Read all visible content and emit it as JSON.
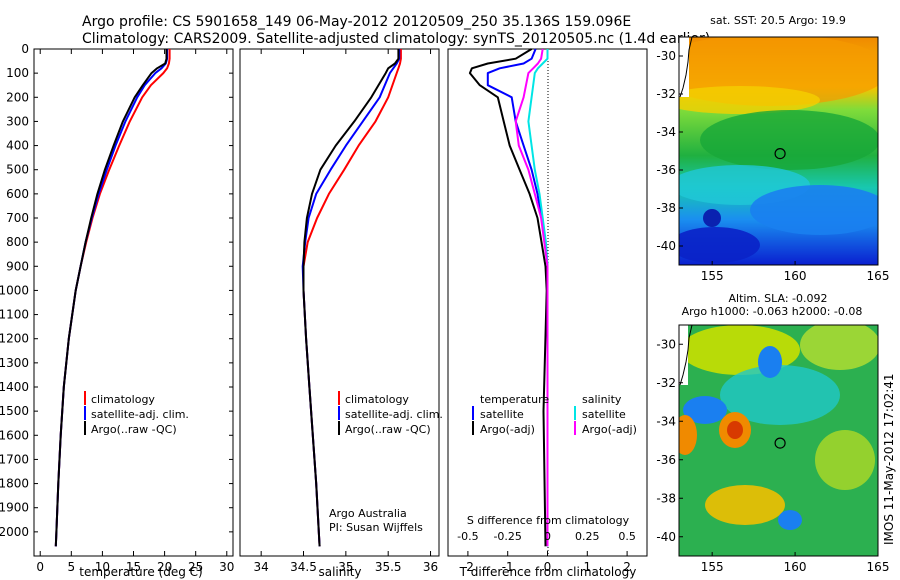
{
  "header": {
    "line1": "Argo profile: CS 5901658_149 06-May-2012 20120509_250 35.136S 159.096E",
    "line2": "Climatology: CARS2009. Satellite-adjusted climatology: synTS_20120505.nc (1.4d earlier)"
  },
  "colors": {
    "red": "#ff0000",
    "blue": "#0000ff",
    "black": "#000000",
    "cyan": "#00e5e5",
    "magenta": "#ff00ff"
  },
  "chart_data": [
    {
      "type": "line",
      "id": "temperature",
      "xlabel": "temperature (deg C)",
      "ylim": [
        2100,
        0
      ],
      "xlim": [
        -1,
        31
      ],
      "yticks": [
        0,
        100,
        200,
        300,
        400,
        500,
        600,
        700,
        800,
        900,
        1000,
        1100,
        1200,
        1300,
        1400,
        1500,
        1600,
        1700,
        1800,
        1900,
        2000
      ],
      "xticks": [
        0,
        5,
        10,
        15,
        20,
        25,
        30
      ],
      "legend": [
        "climatology",
        "satellite-adj. clim.",
        "Argo(..raw -QC)"
      ],
      "series": [
        {
          "name": "climatology",
          "color": "red",
          "depth": [
            0,
            40,
            60,
            80,
            100,
            150,
            200,
            300,
            400,
            500,
            600,
            700,
            800,
            900,
            1000,
            1200,
            1400,
            1600,
            1800,
            2000,
            2060
          ],
          "values": [
            20.8,
            20.8,
            20.7,
            20.4,
            19.8,
            17.8,
            16.4,
            14.4,
            12.7,
            11.1,
            9.6,
            8.4,
            7.4,
            6.5,
            5.7,
            4.6,
            3.8,
            3.3,
            2.9,
            2.6,
            2.5
          ]
        },
        {
          "name": "satellite-adj. clim.",
          "color": "blue",
          "depth": [
            0,
            40,
            60,
            80,
            100,
            150,
            200,
            300,
            400,
            500,
            600,
            700,
            800,
            900,
            1000,
            1200,
            1400,
            1600,
            1800,
            2000,
            2060
          ],
          "values": [
            20.4,
            20.4,
            20.2,
            19.5,
            18.5,
            16.8,
            15.6,
            13.7,
            12.1,
            10.7,
            9.4,
            8.3,
            7.3,
            6.5,
            5.7,
            4.6,
            3.8,
            3.3,
            2.9,
            2.6,
            2.5
          ]
        },
        {
          "name": "Argo(..raw -QC)",
          "color": "black",
          "depth": [
            0,
            40,
            60,
            80,
            100,
            150,
            200,
            300,
            400,
            500,
            600,
            700,
            800,
            900,
            1000,
            1200,
            1400,
            1600,
            1800,
            2000,
            2060
          ],
          "values": [
            20.3,
            20.3,
            20.1,
            18.8,
            17.9,
            16.5,
            15.2,
            13.3,
            11.8,
            10.4,
            9.2,
            8.2,
            7.3,
            6.5,
            5.7,
            4.6,
            3.8,
            3.3,
            2.9,
            2.6,
            2.5
          ]
        }
      ]
    },
    {
      "type": "line",
      "id": "salinity",
      "xlabel": "salinity",
      "ylim": [
        2100,
        0
      ],
      "xlim": [
        33.75,
        36.1
      ],
      "xticks": [
        34,
        34.5,
        35,
        35.5,
        36
      ],
      "legend": [
        "climatology",
        "satellite-adj. clim.",
        "Argo(..raw -QC)"
      ],
      "credit": [
        "Argo Australia",
        "PI: Susan Wijffels"
      ],
      "series": [
        {
          "name": "climatology",
          "color": "red",
          "depth": [
            0,
            40,
            60,
            80,
            100,
            200,
            300,
            400,
            500,
            600,
            700,
            800,
            900,
            1000,
            1200,
            1400,
            1600,
            1800,
            2000,
            2060
          ],
          "values": [
            35.65,
            35.65,
            35.64,
            35.62,
            35.6,
            35.5,
            35.35,
            35.15,
            34.98,
            34.8,
            34.66,
            34.55,
            34.5,
            34.5,
            34.53,
            34.57,
            34.61,
            34.65,
            34.68,
            34.69
          ]
        },
        {
          "name": "satellite-adj. clim.",
          "color": "blue",
          "depth": [
            0,
            40,
            60,
            80,
            100,
            200,
            300,
            400,
            500,
            600,
            700,
            800,
            900,
            1000,
            1200,
            1400,
            1600,
            1800,
            2000,
            2060
          ],
          "values": [
            35.63,
            35.63,
            35.6,
            35.56,
            35.52,
            35.4,
            35.2,
            35.0,
            34.82,
            34.65,
            34.56,
            34.52,
            34.49,
            34.5,
            34.53,
            34.57,
            34.61,
            34.65,
            34.68,
            34.69
          ]
        },
        {
          "name": "Argo(..raw -QC)",
          "color": "black",
          "depth": [
            0,
            40,
            60,
            80,
            100,
            200,
            300,
            400,
            500,
            600,
            700,
            800,
            900,
            1000,
            1200,
            1400,
            1600,
            1800,
            2000,
            2060
          ],
          "values": [
            35.62,
            35.62,
            35.58,
            35.5,
            35.47,
            35.3,
            35.1,
            34.88,
            34.7,
            34.6,
            34.54,
            34.51,
            34.5,
            34.5,
            34.53,
            34.57,
            34.61,
            34.65,
            34.68,
            34.69
          ]
        }
      ]
    },
    {
      "type": "line",
      "id": "differences",
      "xlabel": "T difference from climatology",
      "xlabel_top": "S difference from climatology",
      "xlim": [
        -2.5,
        2.5
      ],
      "xticks": [
        -2,
        -1,
        0,
        1,
        2
      ],
      "sticks_labels": [
        "-0.5",
        "-0.25",
        "0",
        "0.25",
        "0.5"
      ],
      "legend_titles": [
        "temperature",
        "salinity"
      ],
      "legend": [
        "satellite",
        "Argo(-adj)",
        "satellite",
        "Argo(-adj)"
      ],
      "series": [
        {
          "name": "T satellite",
          "color": "blue",
          "depth": [
            0,
            40,
            60,
            80,
            100,
            150,
            200,
            300,
            400,
            500,
            600,
            700,
            800,
            900,
            1000,
            1500,
            2060
          ],
          "values": [
            -0.3,
            -0.4,
            -0.6,
            -1.2,
            -1.5,
            -1.5,
            -0.9,
            -0.8,
            -0.6,
            -0.4,
            -0.25,
            -0.15,
            -0.05,
            0,
            0,
            0,
            0
          ]
        },
        {
          "name": "T Argo(-adj)",
          "color": "black",
          "depth": [
            0,
            40,
            60,
            80,
            100,
            150,
            200,
            300,
            400,
            500,
            600,
            700,
            800,
            900,
            1000,
            1500,
            2060
          ],
          "values": [
            -0.4,
            -0.8,
            -1.5,
            -1.9,
            -1.95,
            -1.7,
            -1.25,
            -1.1,
            -0.95,
            -0.7,
            -0.45,
            -0.25,
            -0.15,
            -0.05,
            -0.02,
            -0.1,
            -0.05
          ]
        },
        {
          "name": "S satellite",
          "color": "cyan",
          "depth": [
            0,
            40,
            60,
            80,
            100,
            200,
            300,
            400,
            500,
            600,
            700,
            800,
            900,
            1000,
            1500,
            2060
          ],
          "values": [
            0,
            0,
            -0.03,
            -0.06,
            -0.08,
            -0.1,
            -0.12,
            -0.1,
            -0.08,
            -0.05,
            -0.03,
            -0.01,
            0,
            0,
            0,
            0
          ]
        },
        {
          "name": "S Argo(-adj)",
          "color": "magenta",
          "depth": [
            0,
            40,
            60,
            80,
            100,
            200,
            300,
            400,
            500,
            600,
            700,
            800,
            900,
            1000,
            1500,
            2060
          ],
          "values": [
            -0.03,
            -0.04,
            -0.06,
            -0.09,
            -0.12,
            -0.15,
            -0.2,
            -0.18,
            -0.12,
            -0.08,
            -0.04,
            -0.02,
            0,
            0,
            0,
            0
          ]
        }
      ]
    },
    {
      "type": "heatmap",
      "id": "sst_map",
      "title": "sat. SST: 20.5  Argo: 19.9",
      "xlim": [
        153,
        165
      ],
      "ylim": [
        -41,
        -29
      ],
      "xticks": [
        155,
        160,
        165
      ],
      "yticks": [
        -30,
        -32,
        -34,
        -36,
        -38,
        -40
      ],
      "marker": {
        "lon": 159.096,
        "lat": -35.136
      }
    },
    {
      "type": "heatmap",
      "id": "sla_map",
      "title": "Altim. SLA: -0.092",
      "subtitle": "Argo h1000: -0.063 h2000: -0.08",
      "xlim": [
        153,
        165
      ],
      "ylim": [
        -41,
        -29
      ],
      "xticks": [
        155,
        160,
        165
      ],
      "yticks": [
        -30,
        -32,
        -34,
        -36,
        -38,
        -40
      ],
      "marker": {
        "lon": 159.096,
        "lat": -35.136
      }
    }
  ],
  "footer": {
    "stamp": "IMOS 11-May-2012 17:02:41"
  }
}
